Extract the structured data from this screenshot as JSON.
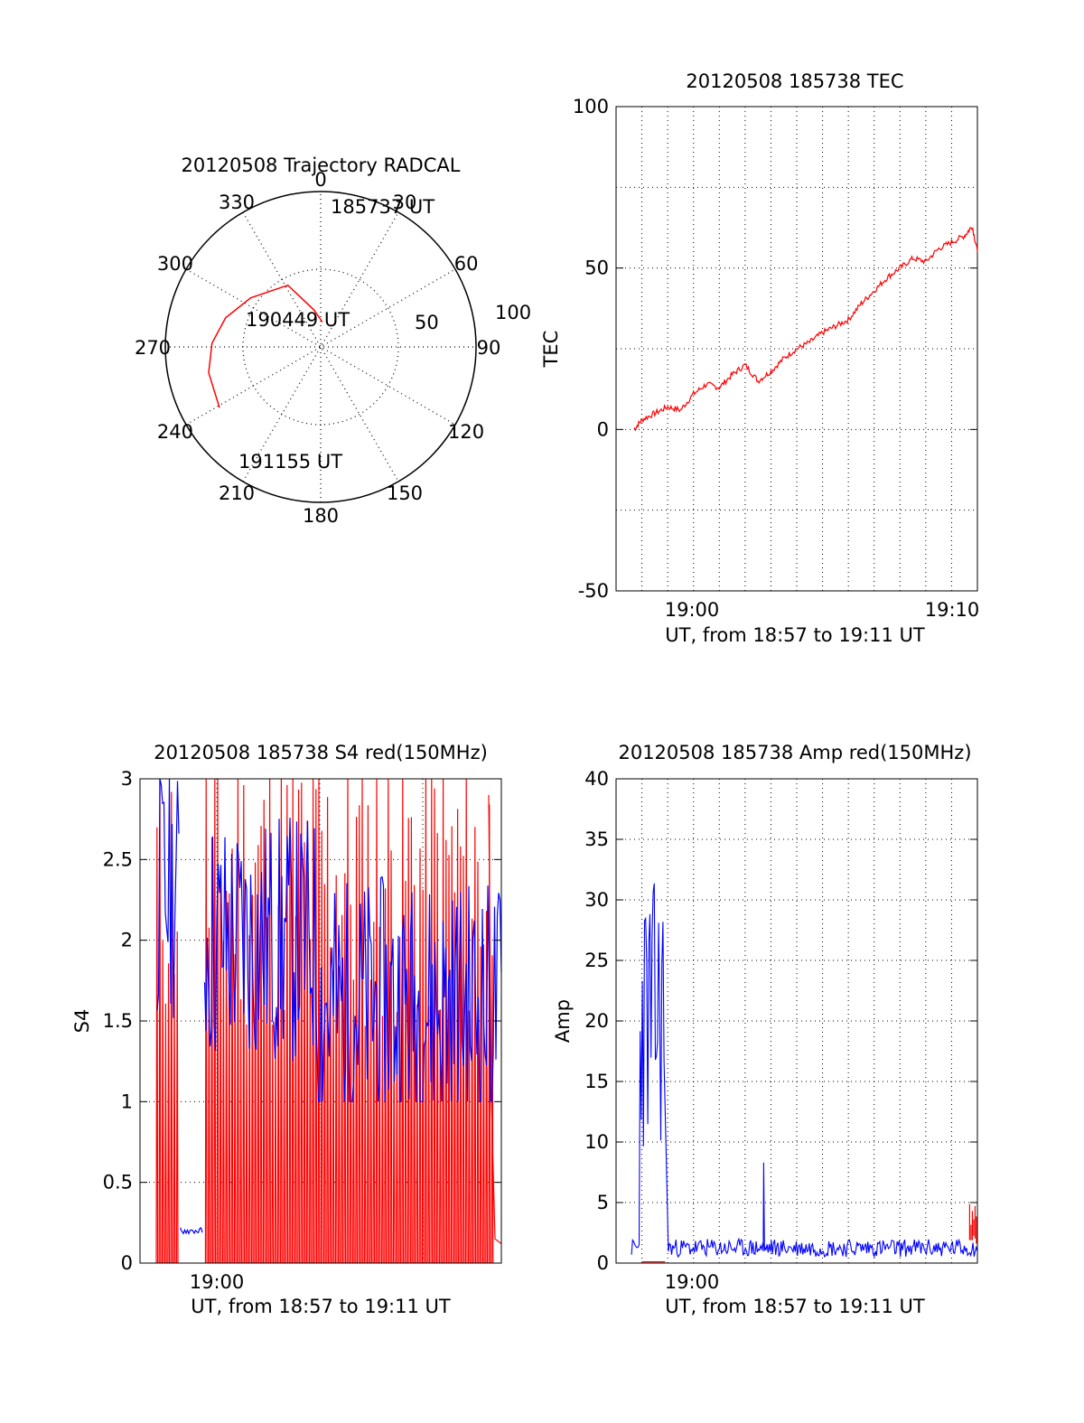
{
  "chart_data": [
    {
      "type": "polar-trajectory",
      "title": "20120508 Trajectory RADCAL",
      "azimuth_ticks": [
        "0",
        "30",
        "60",
        "90",
        "120",
        "150",
        "180",
        "210",
        "240",
        "270",
        "300",
        "330"
      ],
      "radial_labels": [
        "100",
        "50"
      ],
      "radial_range": [
        0,
        100
      ],
      "grid": true,
      "track_color": "#ff0000",
      "track": [
        {
          "az": 4,
          "r": 16
        },
        {
          "az": 350,
          "r": 24
        },
        {
          "az": 332,
          "r": 45
        },
        {
          "az": 305,
          "r": 55
        },
        {
          "az": 287,
          "r": 64
        },
        {
          "az": 272,
          "r": 70
        },
        {
          "az": 257,
          "r": 74
        },
        {
          "az": 239,
          "r": 76
        }
      ],
      "annotations": [
        "185737 UT",
        "190449 UT",
        "191155 UT"
      ]
    },
    {
      "type": "line",
      "title": "20120508 185738 TEC",
      "xlabel": "UT, from 18:57 to 19:11 UT",
      "ylabel": "TEC",
      "x_ticks": [
        "19:00",
        "19:10"
      ],
      "xlim_minutes": [
        0,
        14
      ],
      "ylim": [
        -50,
        100
      ],
      "y_ticks": [
        -50,
        0,
        50,
        100
      ],
      "grid": true,
      "series": [
        {
          "color": "#ff0000",
          "x_minutes": [
            0.7,
            1.0,
            1.5,
            2.0,
            2.5,
            3.0,
            3.5,
            4.0,
            4.5,
            5.0,
            5.5,
            6.0,
            6.5,
            7.0,
            7.5,
            8.0,
            8.5,
            9.0,
            9.5,
            10.0,
            10.5,
            11.0,
            11.5,
            12.0,
            12.5,
            13.0,
            13.5,
            13.8,
            14.0
          ],
          "values": [
            0,
            3,
            5,
            7,
            6,
            11,
            14,
            13,
            17,
            20,
            15,
            18,
            22,
            25,
            27,
            30,
            32,
            34,
            39,
            43,
            47,
            50,
            53,
            52,
            56,
            58,
            60,
            63,
            55
          ]
        }
      ]
    },
    {
      "type": "line",
      "title": "20120508 185738 S4 red(150MHz)",
      "xlabel": "UT, from 18:57 to 19:11 UT",
      "ylabel": "S4",
      "x_ticks": [
        "19:00"
      ],
      "ylim": [
        0,
        3
      ],
      "y_ticks": [
        "0",
        "0.5",
        "1",
        "1.5",
        "2",
        "2.5",
        "3"
      ],
      "grid": true,
      "series": [
        {
          "color": "#ff0000",
          "description_values": "rapid S4 spikes between 0 and 3"
        },
        {
          "color": "#0000ff",
          "description_values": "noisy S4 mostly between 1.2 and 3"
        }
      ]
    },
    {
      "type": "line",
      "title": "20120508 185738 Amp red(150MHz)",
      "xlabel": "UT, from 18:57 to 19:11 UT",
      "ylabel": "Amp",
      "x_ticks": [
        "19:00"
      ],
      "ylim": [
        0,
        40
      ],
      "y_ticks": [
        0,
        5,
        10,
        15,
        20,
        25,
        30,
        35,
        40
      ],
      "grid": true,
      "series": [
        {
          "color": "#0000ff",
          "burst_x_minutes": [
            0.9,
            1.9
          ],
          "burst_level": [
            9,
            32
          ],
          "baseline": [
            0.5,
            2
          ]
        },
        {
          "color": "#ff0000",
          "segments_x_minutes": [
            [
              1.0,
              1.9
            ],
            [
              13.7,
              14.0
            ]
          ],
          "level": [
            0,
            5
          ]
        }
      ]
    }
  ]
}
